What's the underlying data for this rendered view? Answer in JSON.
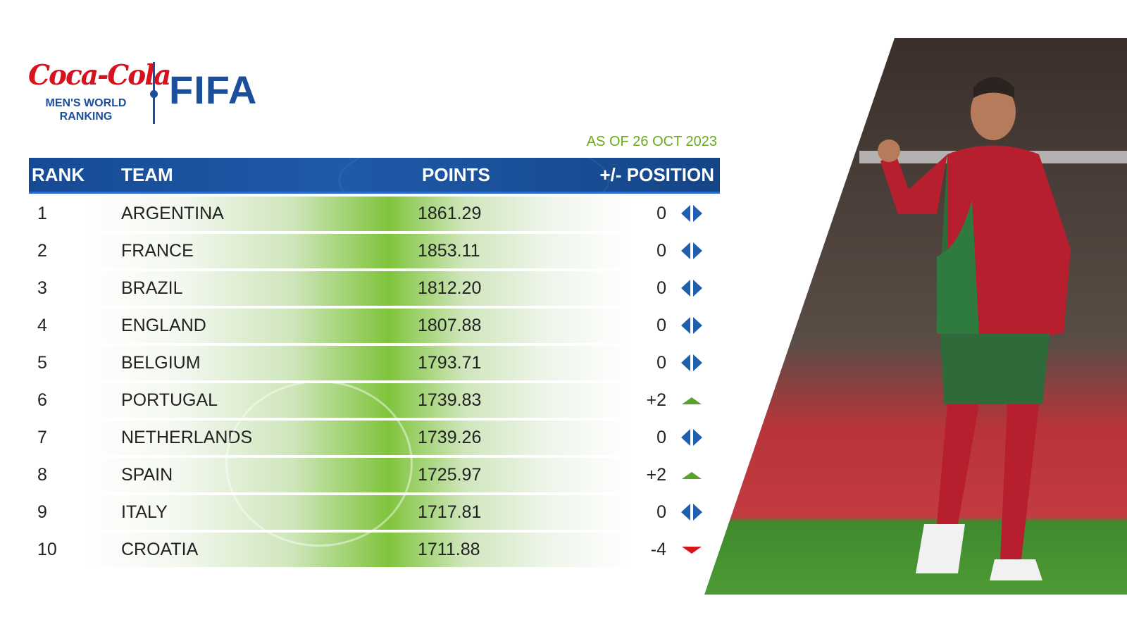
{
  "brand": {
    "sponsor_logo_text": "Coca-Cola",
    "ranking_label_line1": "MEN'S WORLD",
    "ranking_label_line2": "RANKING",
    "fifa_logo_text": "FIFA"
  },
  "as_of": "AS OF 26 OCT 2023",
  "table": {
    "headers": {
      "rank": "RANK",
      "team": "TEAM",
      "points": "POINTS",
      "position": "+/- POSITION"
    },
    "rows": [
      {
        "rank": "1",
        "team": "ARGENTINA",
        "points": "1861.29",
        "change": "0",
        "trend": "same"
      },
      {
        "rank": "2",
        "team": "FRANCE",
        "points": "1853.11",
        "change": "0",
        "trend": "same"
      },
      {
        "rank": "3",
        "team": "BRAZIL",
        "points": "1812.20",
        "change": "0",
        "trend": "same"
      },
      {
        "rank": "4",
        "team": "ENGLAND",
        "points": "1807.88",
        "change": "0",
        "trend": "same"
      },
      {
        "rank": "5",
        "team": "BELGIUM",
        "points": "1793.71",
        "change": "0",
        "trend": "same"
      },
      {
        "rank": "6",
        "team": "PORTUGAL",
        "points": "1739.83",
        "change": "+2",
        "trend": "up"
      },
      {
        "rank": "7",
        "team": "NETHERLANDS",
        "points": "1739.26",
        "change": "0",
        "trend": "same"
      },
      {
        "rank": "8",
        "team": "SPAIN",
        "points": "1725.97",
        "change": "+2",
        "trend": "up"
      },
      {
        "rank": "9",
        "team": "ITALY",
        "points": "1717.81",
        "change": "0",
        "trend": "same"
      },
      {
        "rank": "10",
        "team": "CROATIA",
        "points": "1711.88",
        "change": "-4",
        "trend": "down"
      }
    ]
  },
  "colors": {
    "fifa_blue": "#1b4f9b",
    "coke_red": "#d5121e",
    "accent_green": "#6aa91c",
    "up_green": "#5aa02c",
    "down_red": "#d9161b",
    "same_blue": "#1f5fae"
  },
  "icons": {
    "same": "diamond-arrows-icon",
    "up": "triangle-up-icon",
    "down": "triangle-down-icon"
  }
}
